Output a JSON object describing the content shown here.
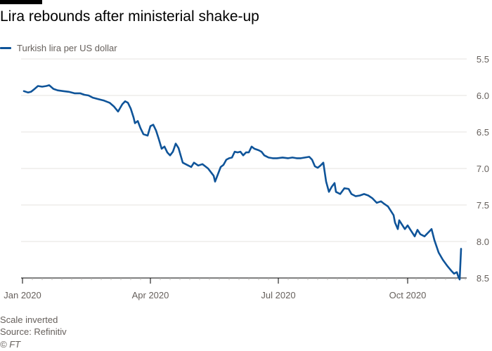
{
  "title": "Lira rebounds after ministerial shake-up",
  "footer": {
    "note": "Scale inverted",
    "source": "Source: Refinitiv",
    "credit": "© FT"
  },
  "colors": {
    "series": "#0f5499",
    "grid": "#e6e3df",
    "axis_text": "#66605c",
    "axis_line": "#000000"
  },
  "chart_data": {
    "type": "line",
    "y_inverted": true,
    "ylim": [
      5.5,
      8.5
    ],
    "y_ticks": [
      5.5,
      6.0,
      6.5,
      7.0,
      7.5,
      8.0,
      8.5
    ],
    "y_tick_labels": [
      "5.5",
      "6.0",
      "6.5",
      "7.0",
      "7.5",
      "8.0",
      "8.5"
    ],
    "y_axis_position": "right",
    "xlim": [
      "2020-01-01",
      "2020-11-12"
    ],
    "x_ticks": [
      "2020-01-01",
      "2020-04-01",
      "2020-07-01",
      "2020-10-01"
    ],
    "x_tick_labels": [
      "Jan 2020",
      "Apr 2020",
      "Jul 2020",
      "Oct 2020"
    ],
    "grid": "horizontal",
    "legend_position": "top-left",
    "series": [
      {
        "name": "Turkish lira per US dollar",
        "color": "#0f5499",
        "points": [
          [
            "2020-01-02",
            5.94
          ],
          [
            "2020-01-05",
            5.96
          ],
          [
            "2020-01-07",
            5.95
          ],
          [
            "2020-01-09",
            5.92
          ],
          [
            "2020-01-12",
            5.87
          ],
          [
            "2020-01-15",
            5.88
          ],
          [
            "2020-01-18",
            5.87
          ],
          [
            "2020-01-20",
            5.86
          ],
          [
            "2020-01-23",
            5.91
          ],
          [
            "2020-01-26",
            5.93
          ],
          [
            "2020-01-30",
            5.94
          ],
          [
            "2020-02-03",
            5.95
          ],
          [
            "2020-02-07",
            5.97
          ],
          [
            "2020-02-11",
            5.97
          ],
          [
            "2020-02-14",
            5.99
          ],
          [
            "2020-02-17",
            6.0
          ],
          [
            "2020-02-20",
            6.03
          ],
          [
            "2020-02-24",
            6.05
          ],
          [
            "2020-02-28",
            6.07
          ],
          [
            "2020-03-03",
            6.1
          ],
          [
            "2020-03-06",
            6.15
          ],
          [
            "2020-03-09",
            6.22
          ],
          [
            "2020-03-12",
            6.12
          ],
          [
            "2020-03-14",
            6.08
          ],
          [
            "2020-03-16",
            6.1
          ],
          [
            "2020-03-18",
            6.18
          ],
          [
            "2020-03-20",
            6.3
          ],
          [
            "2020-03-21",
            6.38
          ],
          [
            "2020-03-23",
            6.35
          ],
          [
            "2020-03-25",
            6.45
          ],
          [
            "2020-03-27",
            6.53
          ],
          [
            "2020-03-30",
            6.55
          ],
          [
            "2020-04-01",
            6.42
          ],
          [
            "2020-04-03",
            6.4
          ],
          [
            "2020-04-05",
            6.48
          ],
          [
            "2020-04-07",
            6.6
          ],
          [
            "2020-04-09",
            6.73
          ],
          [
            "2020-04-11",
            6.7
          ],
          [
            "2020-04-13",
            6.78
          ],
          [
            "2020-04-15",
            6.82
          ],
          [
            "2020-04-17",
            6.77
          ],
          [
            "2020-04-19",
            6.66
          ],
          [
            "2020-04-21",
            6.72
          ],
          [
            "2020-04-24",
            6.92
          ],
          [
            "2020-04-27",
            6.95
          ],
          [
            "2020-04-30",
            6.98
          ],
          [
            "2020-05-02",
            6.92
          ],
          [
            "2020-05-05",
            6.96
          ],
          [
            "2020-05-08",
            6.94
          ],
          [
            "2020-05-10",
            6.97
          ],
          [
            "2020-05-12",
            7.0
          ],
          [
            "2020-05-14",
            7.05
          ],
          [
            "2020-05-16",
            7.1
          ],
          [
            "2020-05-17",
            7.18
          ],
          [
            "2020-05-19",
            7.08
          ],
          [
            "2020-05-21",
            6.98
          ],
          [
            "2020-05-23",
            6.95
          ],
          [
            "2020-05-25",
            6.88
          ],
          [
            "2020-05-27",
            6.86
          ],
          [
            "2020-05-29",
            6.85
          ],
          [
            "2020-05-31",
            6.77
          ],
          [
            "2020-06-02",
            6.78
          ],
          [
            "2020-06-04",
            6.77
          ],
          [
            "2020-06-06",
            6.82
          ],
          [
            "2020-06-08",
            6.78
          ],
          [
            "2020-06-10",
            6.78
          ],
          [
            "2020-06-12",
            6.7
          ],
          [
            "2020-06-14",
            6.73
          ],
          [
            "2020-06-17",
            6.75
          ],
          [
            "2020-06-19",
            6.77
          ],
          [
            "2020-06-21",
            6.82
          ],
          [
            "2020-06-24",
            6.85
          ],
          [
            "2020-06-27",
            6.86
          ],
          [
            "2020-06-30",
            6.86
          ],
          [
            "2020-07-04",
            6.85
          ],
          [
            "2020-07-08",
            6.86
          ],
          [
            "2020-07-11",
            6.85
          ],
          [
            "2020-07-14",
            6.86
          ],
          [
            "2020-07-17",
            6.86
          ],
          [
            "2020-07-20",
            6.85
          ],
          [
            "2020-07-23",
            6.84
          ],
          [
            "2020-07-25",
            6.88
          ],
          [
            "2020-07-27",
            6.97
          ],
          [
            "2020-07-29",
            6.99
          ],
          [
            "2020-07-31",
            6.96
          ],
          [
            "2020-08-02",
            6.92
          ],
          [
            "2020-08-04",
            7.18
          ],
          [
            "2020-08-06",
            7.32
          ],
          [
            "2020-08-08",
            7.25
          ],
          [
            "2020-08-10",
            7.2
          ],
          [
            "2020-08-11",
            7.32
          ],
          [
            "2020-08-14",
            7.35
          ],
          [
            "2020-08-17",
            7.27
          ],
          [
            "2020-08-20",
            7.28
          ],
          [
            "2020-08-22",
            7.35
          ],
          [
            "2020-08-25",
            7.38
          ],
          [
            "2020-08-28",
            7.37
          ],
          [
            "2020-08-31",
            7.35
          ],
          [
            "2020-09-03",
            7.37
          ],
          [
            "2020-09-06",
            7.41
          ],
          [
            "2020-09-09",
            7.47
          ],
          [
            "2020-09-12",
            7.45
          ],
          [
            "2020-09-14",
            7.48
          ],
          [
            "2020-09-17",
            7.52
          ],
          [
            "2020-09-19",
            7.58
          ],
          [
            "2020-09-21",
            7.64
          ],
          [
            "2020-09-22",
            7.74
          ],
          [
            "2020-09-24",
            7.83
          ],
          [
            "2020-09-25",
            7.71
          ],
          [
            "2020-09-27",
            7.77
          ],
          [
            "2020-09-29",
            7.83
          ],
          [
            "2020-10-01",
            7.78
          ],
          [
            "2020-10-03",
            7.84
          ],
          [
            "2020-10-05",
            7.9
          ],
          [
            "2020-10-06",
            7.93
          ],
          [
            "2020-10-08",
            7.84
          ],
          [
            "2020-10-10",
            7.9
          ],
          [
            "2020-10-13",
            7.93
          ],
          [
            "2020-10-16",
            7.87
          ],
          [
            "2020-10-18",
            7.83
          ],
          [
            "2020-10-20",
            7.98
          ],
          [
            "2020-10-23",
            8.15
          ],
          [
            "2020-10-26",
            8.25
          ],
          [
            "2020-10-29",
            8.33
          ],
          [
            "2020-11-01",
            8.4
          ],
          [
            "2020-11-03",
            8.44
          ],
          [
            "2020-11-05",
            8.42
          ],
          [
            "2020-11-06",
            8.48
          ],
          [
            "2020-11-07",
            8.52
          ],
          [
            "2020-11-08",
            8.1
          ]
        ]
      }
    ]
  }
}
